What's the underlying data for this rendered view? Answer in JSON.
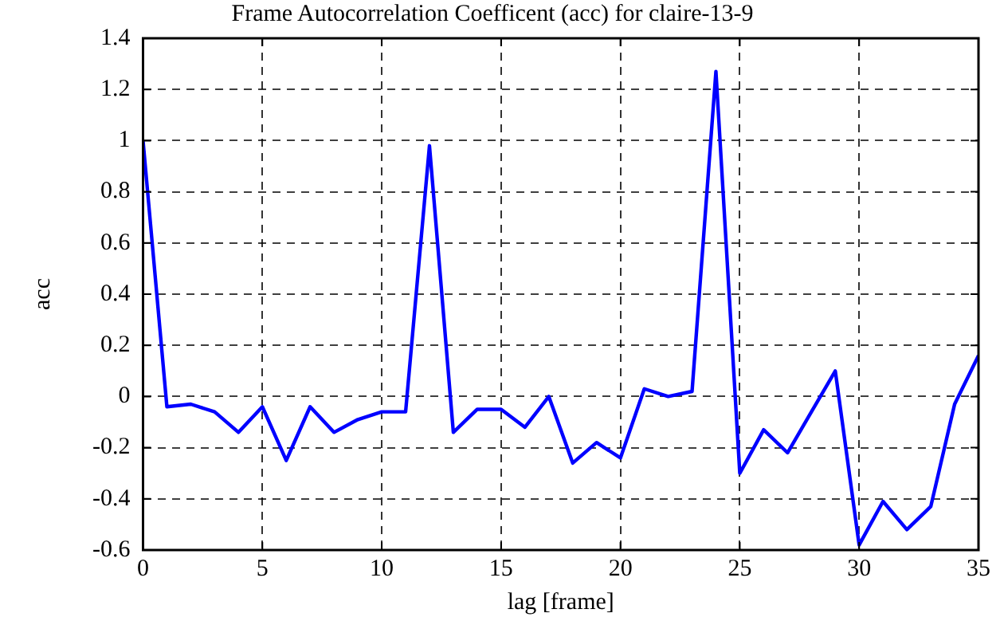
{
  "chart_data": {
    "type": "line",
    "title": "Frame Autocorrelation Coefficent (acc) for claire-13-9",
    "xlabel": "lag [frame]",
    "ylabel": "acc",
    "x": [
      0,
      1,
      2,
      3,
      4,
      5,
      6,
      7,
      8,
      9,
      10,
      11,
      12,
      13,
      14,
      15,
      16,
      17,
      18,
      19,
      20,
      21,
      22,
      23,
      24,
      25,
      26,
      27,
      28,
      29,
      30,
      31,
      32,
      33,
      34,
      35
    ],
    "series": [
      {
        "color": "#0000ff",
        "values": [
          1.0,
          -0.04,
          -0.03,
          -0.06,
          -0.14,
          -0.04,
          -0.25,
          -0.04,
          -0.14,
          -0.09,
          -0.06,
          -0.06,
          0.98,
          -0.14,
          -0.05,
          -0.05,
          -0.12,
          0.0,
          -0.26,
          -0.18,
          -0.24,
          0.03,
          0.0,
          0.02,
          1.27,
          -0.3,
          -0.13,
          -0.22,
          -0.06,
          0.1,
          -0.58,
          -0.41,
          -0.52,
          -0.43,
          -0.03,
          0.16
        ]
      }
    ],
    "xlim": [
      0,
      35
    ],
    "xticks": [
      0,
      5,
      10,
      15,
      20,
      25,
      30,
      35
    ],
    "ylim": [
      -0.6,
      1.4
    ],
    "yticks": [
      -0.6,
      -0.4,
      -0.2,
      0,
      0.2,
      0.4,
      0.6,
      0.8,
      1,
      1.2,
      1.4
    ],
    "grid": true,
    "legend": false,
    "marker": "none",
    "line_style": "solid"
  }
}
